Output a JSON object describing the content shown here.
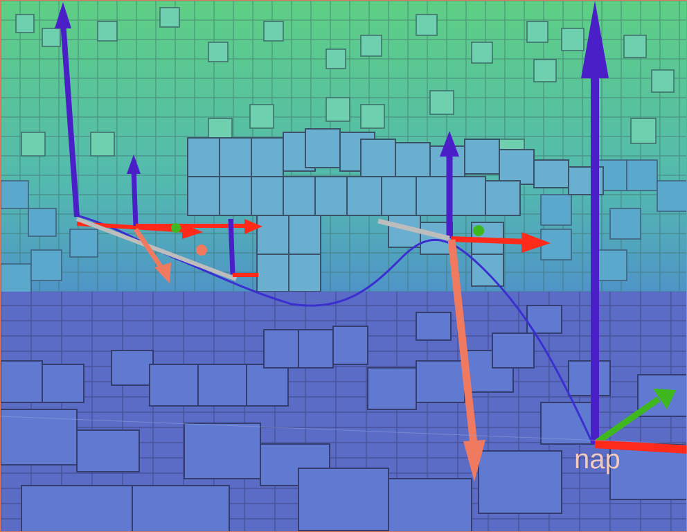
{
  "scene": {
    "kind": "3d-voxel-octomap",
    "background_gradient": {
      "top": "#5fcf84",
      "mid": "#4fa6c8",
      "bottom": "#5a60c4"
    },
    "voxel_colors": {
      "high": "#57c7a8",
      "mid": "#5aa0cc",
      "low": "#5a76c8",
      "edge": "#3e4f6e"
    },
    "axis_colors": {
      "x": "#ff2a1a",
      "y": "#3fb81f",
      "z": "#4a1fc8",
      "orientation": "#f07a60",
      "link": "#bdbdbd"
    },
    "trajectory_color": "#3b2fd0"
  },
  "labels": {
    "frame_label": "nap"
  }
}
